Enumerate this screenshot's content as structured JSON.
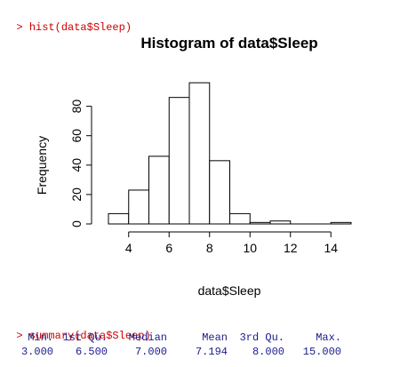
{
  "console": {
    "prompt": ">",
    "command1": "hist(data$Sleep)",
    "command2": "summary(data$Sleep)",
    "summary_headers": [
      "Min.",
      "1st Qu.",
      "Median",
      "Mean",
      "3rd Qu.",
      "Max."
    ],
    "summary_values": [
      "3.000",
      "6.500",
      "7.000",
      "7.194",
      "8.000",
      "15.000"
    ]
  },
  "chart_data": {
    "type": "bar",
    "title": "Histogram of data$Sleep",
    "xlabel": "data$Sleep",
    "ylabel": "Frequency",
    "bins": [
      {
        "from": 3,
        "to": 4,
        "count": 7
      },
      {
        "from": 4,
        "to": 5,
        "count": 23
      },
      {
        "from": 5,
        "to": 6,
        "count": 46
      },
      {
        "from": 6,
        "to": 7,
        "count": 86
      },
      {
        "from": 7,
        "to": 8,
        "count": 96
      },
      {
        "from": 8,
        "to": 9,
        "count": 43
      },
      {
        "from": 9,
        "to": 10,
        "count": 7
      },
      {
        "from": 10,
        "to": 11,
        "count": 1
      },
      {
        "from": 11,
        "to": 12,
        "count": 2
      },
      {
        "from": 12,
        "to": 13,
        "count": 0
      },
      {
        "from": 13,
        "to": 14,
        "count": 0
      },
      {
        "from": 14,
        "to": 15,
        "count": 1
      }
    ],
    "xlim": [
      3,
      15
    ],
    "ylim": [
      0,
      96
    ],
    "xticks": [
      4,
      6,
      8,
      10,
      12,
      14
    ],
    "yticks": [
      0,
      20,
      40,
      60,
      80
    ],
    "grid": false,
    "legend": "none",
    "colors": {
      "bar_fill": "#ffffff",
      "bar_stroke": "#000000"
    }
  }
}
